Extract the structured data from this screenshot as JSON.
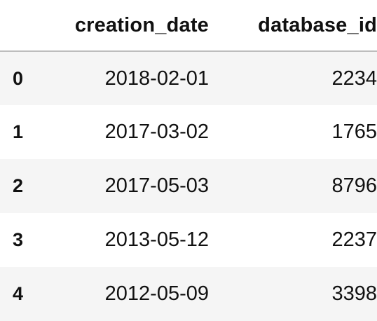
{
  "table": {
    "columns": [
      "",
      "creation_date",
      "database_id"
    ],
    "rows": [
      {
        "index": "0",
        "creation_date": "2018-02-01",
        "database_id": "2234"
      },
      {
        "index": "1",
        "creation_date": "2017-03-02",
        "database_id": "1765"
      },
      {
        "index": "2",
        "creation_date": "2017-05-03",
        "database_id": "8796"
      },
      {
        "index": "3",
        "creation_date": "2013-05-12",
        "database_id": "2237"
      },
      {
        "index": "4",
        "creation_date": "2012-05-09",
        "database_id": "3398"
      }
    ]
  },
  "colors": {
    "stripe": "#f5f5f5",
    "header_rule": "#bdbdbd",
    "text": "#111111"
  }
}
